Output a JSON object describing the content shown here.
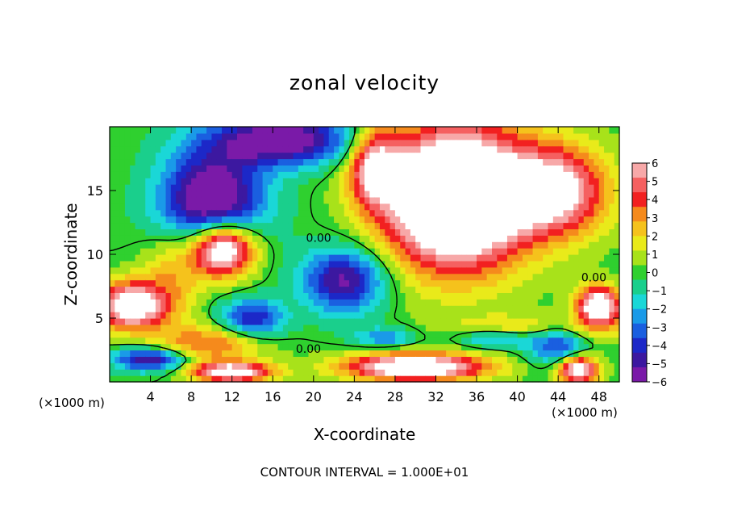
{
  "chart_data": {
    "type": "heatmap",
    "title": "zonal velocity",
    "xlabel": "X-coordinate",
    "ylabel": "Z-coordinate",
    "x_unit_label": "(×1000 m)",
    "x_ticks": [
      4,
      8,
      12,
      16,
      20,
      24,
      28,
      32,
      36,
      40,
      44,
      48
    ],
    "y_ticks": [
      5,
      10,
      15
    ],
    "xlim": [
      0,
      50
    ],
    "ylim": [
      0,
      20
    ],
    "colorbar": {
      "ticks": [
        6,
        5,
        4,
        3,
        2,
        1,
        0,
        -1,
        -2,
        -3,
        -4,
        -5,
        -6
      ],
      "colors": [
        "#f7a8a8",
        "#f56060",
        "#f22020",
        "#f58a1c",
        "#f5c21c",
        "#e9ea1a",
        "#a8e21a",
        "#2fd02f",
        "#1acf8c",
        "#1ad7d7",
        "#1a9ae8",
        "#1a5fe0",
        "#1c28c8",
        "#3c18a0",
        "#7a1aa8"
      ]
    },
    "contour_labels": [
      {
        "x": 20.5,
        "y": 11.3,
        "text": "0.00"
      },
      {
        "x": 47.5,
        "y": 8.2,
        "text": "0.00"
      },
      {
        "x": 19.5,
        "y": 2.6,
        "text": "0.00"
      }
    ],
    "footer": "CONTOUR INTERVAL = 1.000E+01"
  }
}
